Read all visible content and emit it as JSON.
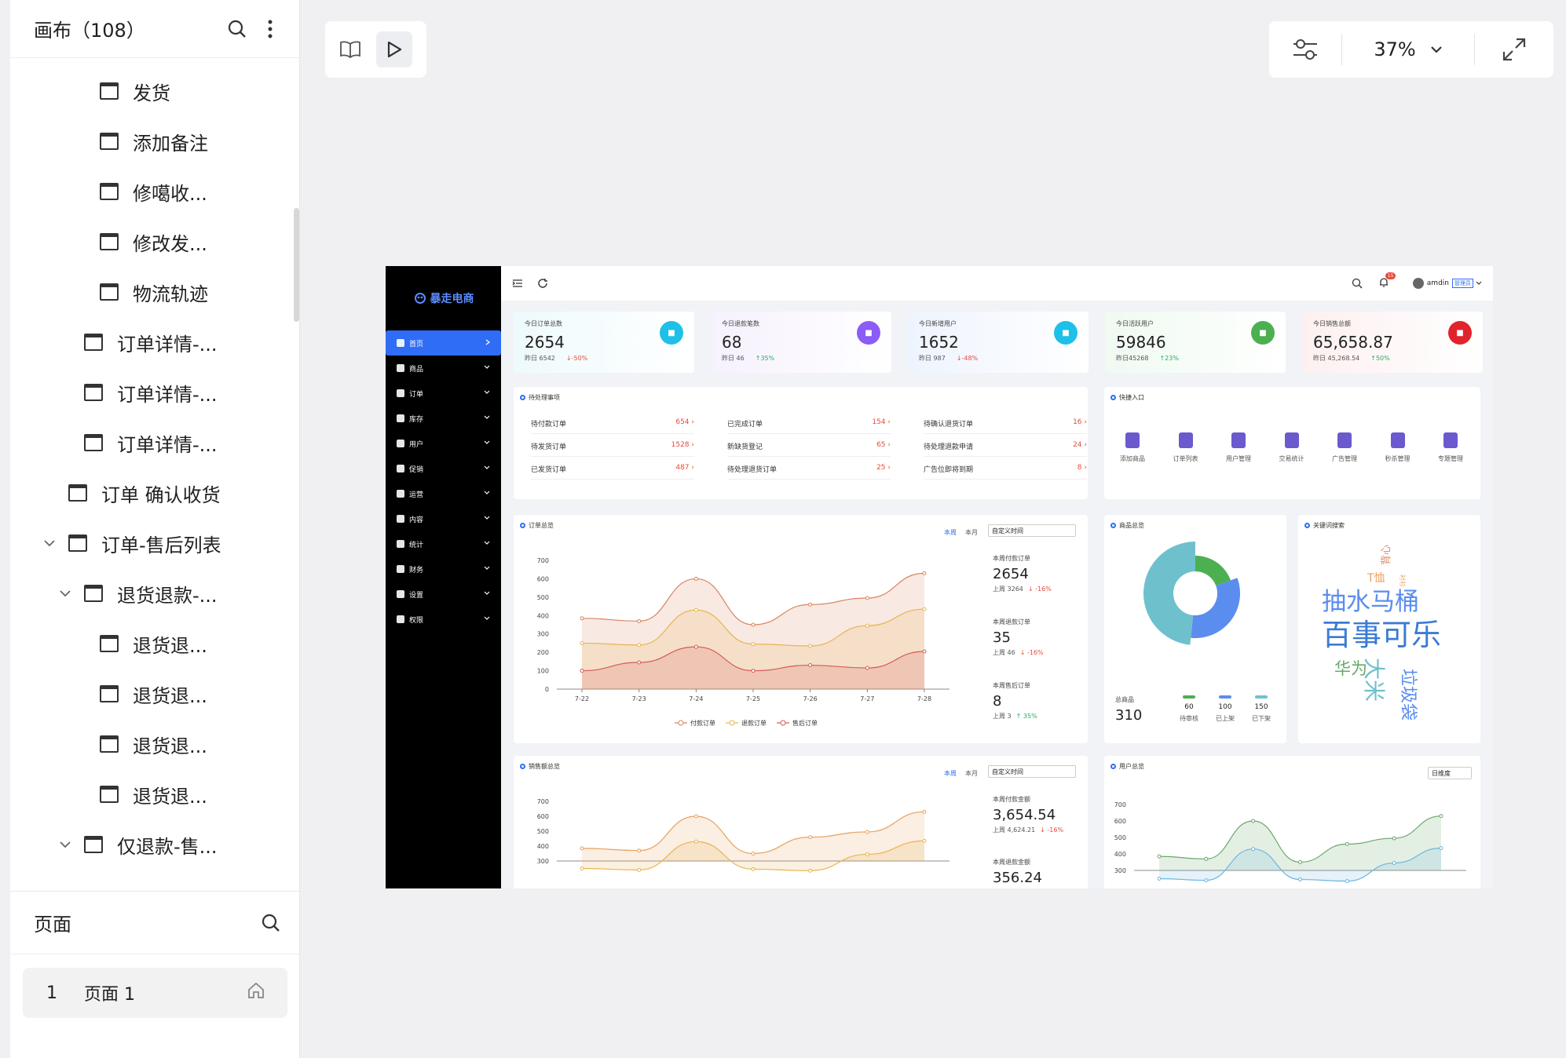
{
  "left_panel": {
    "canvas_title": "画布（108）",
    "tree_items": [
      {
        "label": "发货",
        "indent": 3,
        "arrow": false
      },
      {
        "label": "添加备注",
        "indent": 3,
        "arrow": false
      },
      {
        "label": "修噶收...",
        "indent": 3,
        "arrow": false
      },
      {
        "label": "修改发...",
        "indent": 3,
        "arrow": false
      },
      {
        "label": "物流轨迹",
        "indent": 3,
        "arrow": false
      },
      {
        "label": "订单详情-...",
        "indent": 2,
        "arrow": false
      },
      {
        "label": "订单详情-...",
        "indent": 2,
        "arrow": false
      },
      {
        "label": "订单详情-...",
        "indent": 2,
        "arrow": false
      },
      {
        "label": "订单 确认收货",
        "indent": 1,
        "arrow": false
      },
      {
        "label": "订单-售后列表",
        "indent": 1,
        "arrow": true
      },
      {
        "label": "退货退款-...",
        "indent": 2,
        "arrow": true
      },
      {
        "label": "退货退...",
        "indent": 3,
        "arrow": false
      },
      {
        "label": "退货退...",
        "indent": 3,
        "arrow": false
      },
      {
        "label": "退货退...",
        "indent": 3,
        "arrow": false
      },
      {
        "label": "退货退...",
        "indent": 3,
        "arrow": false
      },
      {
        "label": "仅退款-售...",
        "indent": 2,
        "arrow": true
      }
    ],
    "pages_title": "页面",
    "page_item": {
      "number": "1",
      "name": "页面 1"
    }
  },
  "toolbar": {
    "zoom": "37%"
  },
  "dashboard": {
    "logo": "暴走电商",
    "nav": [
      {
        "label": "首页",
        "active": true
      },
      {
        "label": "商品"
      },
      {
        "label": "订单"
      },
      {
        "label": "库存"
      },
      {
        "label": "用户"
      },
      {
        "label": "促销"
      },
      {
        "label": "运营"
      },
      {
        "label": "内容"
      },
      {
        "label": "统计"
      },
      {
        "label": "财务"
      },
      {
        "label": "设置"
      },
      {
        "label": "权限"
      }
    ],
    "notification_count": "15",
    "user": "amdin",
    "role_badge": "管理员",
    "kpis": [
      {
        "label": "今日订单总数",
        "value": "2654",
        "sub": "昨日 6542",
        "change": "-50%",
        "dir": "down",
        "color": "#1ec0e8",
        "bg": "linear-gradient(90deg,#eefafd,#fff)"
      },
      {
        "label": "今日退款笔数",
        "value": "68",
        "sub": "昨日 46",
        "change": "35%",
        "dir": "up",
        "color": "#8b5cf6",
        "bg": "linear-gradient(90deg,#f6f1fe,#fff)"
      },
      {
        "label": "今日新增用户",
        "value": "1652",
        "sub": "昨日 987",
        "change": "-48%",
        "dir": "down",
        "color": "#1ec0e8",
        "bg": "linear-gradient(90deg,#eef4fe,#fff)"
      },
      {
        "label": "今日活跃用户",
        "value": "59846",
        "sub": "昨日45268",
        "change": "23%",
        "dir": "up",
        "color": "#4caf50",
        "bg": "linear-gradient(90deg,#effaf1,#fff)"
      },
      {
        "label": "今日销售总额",
        "value": "65,658.87",
        "sub": "昨日 45,268.54",
        "change": "50%",
        "dir": "up",
        "color": "#e0242e",
        "bg": "linear-gradient(90deg,#fdf0f0,#fff)"
      }
    ],
    "todo": {
      "title": "待处理事项",
      "items": [
        {
          "label": "待付款订单",
          "value": "654"
        },
        {
          "label": "已完成订单",
          "value": "154"
        },
        {
          "label": "待确认退货订单",
          "value": "16"
        },
        {
          "label": "待发货订单",
          "value": "1528"
        },
        {
          "label": "新缺货登记",
          "value": "65"
        },
        {
          "label": "待处理退款申请",
          "value": "24"
        },
        {
          "label": "已发货订单",
          "value": "487"
        },
        {
          "label": "待处理退货订单",
          "value": "25"
        },
        {
          "label": "广告位即将到期",
          "value": "8"
        }
      ]
    },
    "quick": {
      "title": "快捷入口",
      "items": [
        "添加商品",
        "订单列表",
        "用户管理",
        "交易统计",
        "广告管理",
        "秒杀管理",
        "专题管理"
      ]
    },
    "orders_card": {
      "title": "订单总览",
      "tab_week": "本周",
      "tab_month": "本月",
      "select": "自定义时间",
      "stats": [
        {
          "label": "本周付款订单",
          "value": "2654",
          "sub": "上周 3264",
          "change": "-16%",
          "dir": "down"
        },
        {
          "label": "本周退款订单",
          "value": "35",
          "sub": "上周 46",
          "change": "-16%",
          "dir": "down"
        },
        {
          "label": "本周售后订单",
          "value": "8",
          "sub": "上周 3",
          "change": "35%",
          "dir": "up"
        }
      ]
    },
    "goods_card": {
      "title": "商品总览",
      "total_label": "总商品",
      "total": "310",
      "legend": [
        {
          "value": "60",
          "label": "待审核",
          "color": "#4caf50"
        },
        {
          "value": "100",
          "label": "已上架",
          "color": "#5b8def"
        },
        {
          "value": "150",
          "label": "已下架",
          "color": "#6ec1cc"
        }
      ]
    },
    "keywords_card": {
      "title": "关键词搜索",
      "words": [
        "抽水马桶",
        "百事可乐",
        "华为",
        "大米",
        "垃圾袋",
        "T恤",
        "背心",
        "衬衫"
      ]
    },
    "sales_card": {
      "title": "销售额总览",
      "tab_week": "本周",
      "tab_month": "本月",
      "select": "自定义时间",
      "stats": [
        {
          "label": "本周付款金额",
          "value": "3,654.54",
          "sub": "上周 4,624.21",
          "change": "-16%",
          "dir": "down"
        },
        {
          "label": "本周退款金额",
          "value": "356.24"
        }
      ]
    },
    "users_card": {
      "title": "用户总览",
      "select": "日维度"
    }
  },
  "chart_data": [
    {
      "type": "area",
      "title": "订单总览",
      "categories": [
        "7-22",
        "7-23",
        "7-24",
        "7-25",
        "7-26",
        "7-27",
        "7-28"
      ],
      "ylim": [
        0,
        700
      ],
      "yticks": [
        "700",
        "600",
        "500",
        "400",
        "300",
        "200",
        "100",
        "0"
      ],
      "series": [
        {
          "name": "付款订单",
          "color": "#d9845f",
          "values": [
            385,
            370,
            600,
            350,
            460,
            495,
            630
          ]
        },
        {
          "name": "退款订单",
          "color": "#e8b455",
          "values": [
            250,
            240,
            430,
            245,
            235,
            345,
            435
          ]
        },
        {
          "name": "售后订单",
          "color": "#d65a5a",
          "values": [
            100,
            145,
            230,
            100,
            130,
            115,
            205
          ]
        }
      ]
    },
    {
      "type": "pie",
      "title": "商品总览",
      "categories": [
        "待审核",
        "已上架",
        "已下架"
      ],
      "values": [
        60,
        100,
        150
      ],
      "colors": [
        "#4caf50",
        "#5b8def",
        "#6ec1cc"
      ]
    },
    {
      "type": "area",
      "title": "销售额总览",
      "ylim": [
        300,
        700
      ],
      "yticks": [
        "700",
        "600",
        "500",
        "400",
        "300"
      ],
      "series": [
        {
          "color": "#e8a15f",
          "values": [
            385,
            370,
            600,
            350,
            460,
            495,
            630
          ]
        },
        {
          "color": "#e8b455",
          "values": [
            250,
            240,
            430,
            245,
            235,
            345,
            435
          ]
        }
      ]
    },
    {
      "type": "area",
      "title": "用户总览",
      "ylim": [
        300,
        700
      ],
      "yticks": [
        "700",
        "600",
        "500",
        "400",
        "300"
      ],
      "series": [
        {
          "color": "#6aa86a",
          "values": [
            385,
            370,
            600,
            350,
            460,
            495,
            630
          ]
        },
        {
          "color": "#6fb6dc",
          "values": [
            250,
            240,
            430,
            245,
            235,
            345,
            435
          ]
        }
      ]
    }
  ]
}
